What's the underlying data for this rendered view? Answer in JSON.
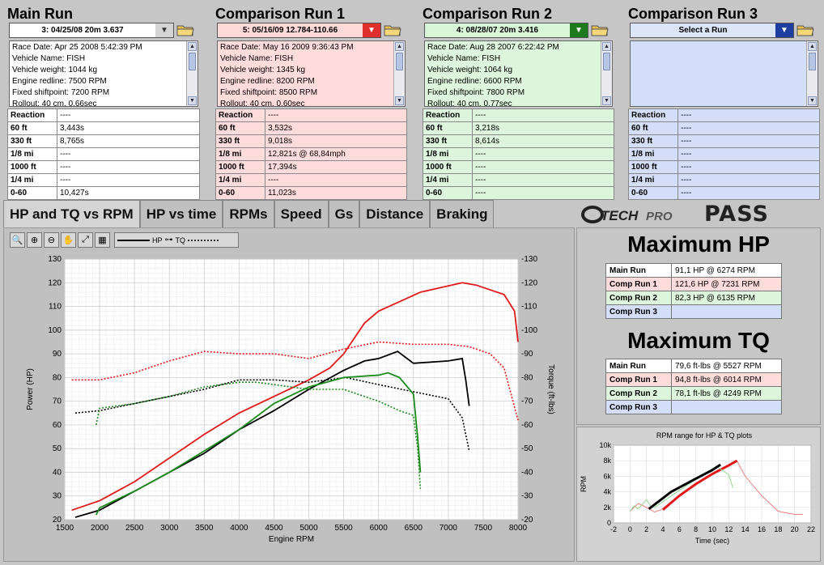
{
  "runs": [
    {
      "title": "Main Run",
      "selected": "3:  04/25/08 20m  3.637",
      "selector_bg": "#ffffff",
      "arrow_bg": "#d4d4d4",
      "panel_bg": "#ffffff",
      "info": [
        "Race Date: Apr 25 2008  5:42:39 PM",
        "Vehicle Name: FISH",
        "Vehicle weight: 1044 kg",
        "Engine redline: 7500 RPM",
        "Fixed shiftpoint: 7200 RPM",
        "Rollout: 40 cm, 0.66sec"
      ],
      "stats": [
        [
          "Reaction",
          "----"
        ],
        [
          "60 ft",
          "3,443s"
        ],
        [
          "330 ft",
          "8,765s"
        ],
        [
          "1/8 mi",
          "----"
        ],
        [
          "1000 ft",
          "----"
        ],
        [
          "1/4 mi",
          "----"
        ],
        [
          "0-60",
          "10,427s"
        ]
      ]
    },
    {
      "title": "Comparison Run 1",
      "selected": "5:  05/16/09 12.784-110.66",
      "selector_bg": "#ffd8d8",
      "arrow_bg": "#e0302e",
      "panel_bg": "#ffdcdc",
      "info": [
        "Race Date: May 16 2009  9:36:43 PM",
        "Vehicle Name: FISH",
        "Vehicle weight: 1345 kg",
        "Engine redline: 8200 RPM",
        "Fixed shiftpoint: 8500 RPM",
        "Rollout: 40 cm, 0.60sec"
      ],
      "stats": [
        [
          "Reaction",
          "----"
        ],
        [
          "60 ft",
          "3,532s"
        ],
        [
          "330 ft",
          "9,018s"
        ],
        [
          "1/8 mi",
          "12,821s @ 68,84mph"
        ],
        [
          "1000 ft",
          "17,394s"
        ],
        [
          "1/4 mi",
          "----"
        ],
        [
          "0-60",
          "11,023s"
        ]
      ]
    },
    {
      "title": "Comparison Run 2",
      "selected": "4:  08/28/07 20m  3.416",
      "selector_bg": "#d8f5d8",
      "arrow_bg": "#1d7a1d",
      "panel_bg": "#dcf5dc",
      "info": [
        "Race Date: Aug 28 2007  6:22:42 PM",
        "Vehicle Name: FISH",
        "Vehicle weight: 1064 kg",
        "Engine redline: 6600 RPM",
        "Fixed shiftpoint: 7800 RPM",
        "Rollout: 40 cm, 0.77sec"
      ],
      "stats": [
        [
          "Reaction",
          "----"
        ],
        [
          "60 ft",
          "3,218s"
        ],
        [
          "330 ft",
          "8,614s"
        ],
        [
          "1/8 mi",
          "----"
        ],
        [
          "1000 ft",
          "----"
        ],
        [
          "1/4 mi",
          "----"
        ],
        [
          "0-60",
          "----"
        ]
      ]
    },
    {
      "title": "Comparison Run 3",
      "selected": "Select a Run",
      "selector_bg": "#dce4f8",
      "arrow_bg": "#1f3fa0",
      "panel_bg": "#d4def8",
      "info": [],
      "stats": [
        [
          "Reaction",
          "----"
        ],
        [
          "60 ft",
          "----"
        ],
        [
          "330 ft",
          "----"
        ],
        [
          "1/8 mi",
          "----"
        ],
        [
          "1000 ft",
          "----"
        ],
        [
          "1/4 mi",
          "----"
        ],
        [
          "0-60",
          "----"
        ]
      ]
    }
  ],
  "tabs": [
    "HP and TQ vs RPM",
    "HP vs time",
    "RPMs",
    "Speed",
    "Gs",
    "Distance",
    "Braking"
  ],
  "brand": {
    "logo": "G-TECH PRO",
    "name": "PASS"
  },
  "legend": {
    "hp": "HP",
    "tq": "TQ"
  },
  "tool_icons": [
    "zoom-icon",
    "zoom-region-icon",
    "zoom-out-icon",
    "pan-hand-icon",
    "fit-icon",
    "grid-icon"
  ],
  "max_hp": {
    "title": "Maximum HP",
    "rows": [
      [
        "Main Run",
        "91,1 HP @ 6274 RPM",
        "#ffffff"
      ],
      [
        "Comp Run 1",
        "121,6 HP @ 7231 RPM",
        "#ffdcdc"
      ],
      [
        "Comp Run 2",
        "82,3 HP @ 6135 RPM",
        "#dcf5dc"
      ],
      [
        "Comp Run 3",
        "",
        "#d4def8"
      ]
    ]
  },
  "max_tq": {
    "title": "Maximum TQ",
    "rows": [
      [
        "Main Run",
        "79,6 ft-lbs @ 5527 RPM",
        "#ffffff"
      ],
      [
        "Comp Run 1",
        "94,8 ft-lbs @ 6014 RPM",
        "#ffdcdc"
      ],
      [
        "Comp Run 2",
        "78,1 ft-lbs @ 4249 RPM",
        "#dcf5dc"
      ],
      [
        "Comp Run 3",
        "",
        "#d4def8"
      ]
    ]
  },
  "chart_data": [
    {
      "type": "line",
      "xlabel": "Engine RPM",
      "ylabel": "Power (HP)",
      "y2label": "Torque (ft-lbs)",
      "xlim": [
        1500,
        8000
      ],
      "ylim": [
        20,
        130
      ],
      "y2lim": [
        20,
        130
      ],
      "xticks": [
        1500,
        2000,
        2500,
        3000,
        3500,
        4000,
        4500,
        5000,
        5500,
        6000,
        6500,
        7000,
        7500,
        8000
      ],
      "yticks": [
        20,
        30,
        40,
        50,
        60,
        70,
        80,
        90,
        100,
        110,
        120,
        130
      ],
      "grid": true,
      "series": [
        {
          "name": "Comp Run 1 HP",
          "color": "#e01818",
          "dash": false,
          "x": [
            1600,
            2000,
            2500,
            3000,
            3500,
            4000,
            4500,
            5000,
            5300,
            5500,
            5800,
            6000,
            6300,
            6600,
            6900,
            7200,
            7400,
            7600,
            7800,
            7950,
            8000
          ],
          "y": [
            24,
            28,
            36,
            46,
            56,
            65,
            72,
            79,
            84,
            90,
            103,
            108,
            112,
            116,
            118,
            120,
            119,
            117,
            115,
            108,
            95
          ]
        },
        {
          "name": "Comp Run 1 TQ",
          "color": "#e01818",
          "dash": true,
          "x": [
            1600,
            2000,
            2500,
            3000,
            3500,
            4000,
            4500,
            5000,
            5500,
            6000,
            6500,
            7000,
            7300,
            7600,
            7800,
            8000
          ],
          "y": [
            79,
            79,
            82,
            87,
            91,
            90,
            90,
            88,
            92,
            95,
            94,
            94,
            93,
            90,
            84,
            62
          ]
        },
        {
          "name": "Main Run HP",
          "color": "#000000",
          "dash": false,
          "x": [
            1650,
            2000,
            2500,
            3000,
            3500,
            4000,
            4500,
            5000,
            5500,
            5800,
            6000,
            6274,
            6500,
            7000,
            7200,
            7250,
            7300
          ],
          "y": [
            21,
            24,
            32,
            40,
            48,
            58,
            66,
            75,
            83,
            87,
            88,
            91,
            86,
            87,
            88,
            79,
            68
          ]
        },
        {
          "name": "Main Run TQ",
          "color": "#000000",
          "dash": true,
          "x": [
            1650,
            2000,
            2500,
            3000,
            3500,
            4000,
            4500,
            5000,
            5527,
            6000,
            6500,
            7000,
            7200,
            7300
          ],
          "y": [
            65,
            66,
            69,
            72,
            75,
            79,
            79,
            78,
            80,
            77,
            74,
            71,
            63,
            49
          ]
        },
        {
          "name": "Comp Run 2 HP",
          "color": "#1a8a1a",
          "dash": false,
          "x": [
            1950,
            2000,
            2500,
            3000,
            3500,
            4000,
            4500,
            5000,
            5500,
            6000,
            6135,
            6300,
            6500,
            6560,
            6600
          ],
          "y": [
            22,
            25,
            32,
            40,
            49,
            58,
            69,
            76,
            80,
            81,
            82,
            80,
            73,
            55,
            40
          ]
        },
        {
          "name": "Comp Run 2 TQ",
          "color": "#1a8a1a",
          "dash": true,
          "x": [
            1950,
            2000,
            2500,
            3000,
            3500,
            4000,
            4249,
            4500,
            5000,
            5500,
            6000,
            6300,
            6500,
            6560,
            6600
          ],
          "y": [
            60,
            67,
            69,
            72,
            76,
            78,
            78,
            77,
            75,
            75,
            70,
            66,
            64,
            50,
            33
          ]
        }
      ]
    },
    {
      "type": "line",
      "title": "RPM range for HP & TQ plots",
      "xlabel": "Time (sec)",
      "ylabel": "RPM",
      "xlim": [
        -2,
        22
      ],
      "ylim": [
        0,
        10000
      ],
      "xticks": [
        -2,
        0,
        2,
        4,
        6,
        8,
        10,
        12,
        14,
        16,
        18,
        20,
        22
      ],
      "yticks": [
        0,
        2000,
        4000,
        6000,
        8000,
        10000
      ],
      "yticklabels": [
        "0",
        "2k",
        "4k",
        "6k",
        "8k",
        "10k"
      ],
      "grid": true,
      "series": [
        {
          "name": "Comp Run 1",
          "color": "#f08080",
          "x": [
            0,
            1,
            2,
            3,
            4,
            6,
            8,
            10,
            12,
            13,
            14,
            16,
            18,
            20,
            21
          ],
          "y": [
            1500,
            2500,
            2000,
            1400,
            1800,
            3500,
            5000,
            6300,
            7400,
            8000,
            6000,
            3500,
            1500,
            1100,
            1100
          ]
        },
        {
          "name": "Comp Run 1 range",
          "color": "#e01818",
          "x": [
            4,
            6,
            8,
            10,
            12,
            13
          ],
          "y": [
            1700,
            3500,
            5000,
            6300,
            7400,
            8000
          ]
        },
        {
          "name": "Comp Run 2",
          "color": "#90d890",
          "x": [
            0,
            0.5,
            1,
            2,
            2.5,
            3,
            6,
            9,
            10.5,
            12,
            12.5
          ],
          "y": [
            1500,
            2200,
            1800,
            3000,
            2200,
            2000,
            4200,
            6300,
            7300,
            6200,
            4500
          ]
        },
        {
          "name": "Main Run",
          "color": "#000000",
          "x": [
            2.3,
            5,
            8,
            10,
            11
          ],
          "y": [
            1800,
            4000,
            5700,
            6800,
            7500
          ]
        }
      ]
    }
  ]
}
